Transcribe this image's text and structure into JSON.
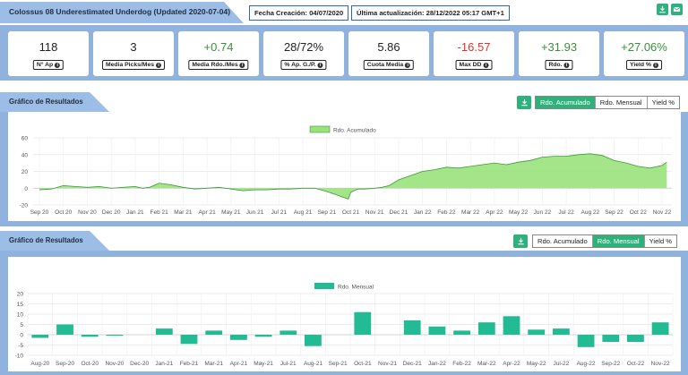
{
  "header": {
    "title": "Colossus 08 Underestimated Underdog (Updated 2020-07-04)",
    "creation_label": "Fecha Creación: 04/07/2020",
    "updated_label": "Última actualización: 28/12/2022 05:17 GMT+1",
    "icons": [
      "download-icon",
      "email-icon"
    ]
  },
  "stats": [
    {
      "value": "118",
      "label": "N° Ap",
      "tone": "neutral"
    },
    {
      "value": "3",
      "label": "Media Picks/Mes",
      "tone": "neutral"
    },
    {
      "value": "+0.74",
      "label": "Media Rdo./Mes",
      "tone": "pos"
    },
    {
      "value": "28/72%",
      "label": "% Ap. G./P.",
      "tone": "neutral"
    },
    {
      "value": "5.86",
      "label": "Cuota Media",
      "tone": "neutral"
    },
    {
      "value": "-16.57",
      "label": "Max DD",
      "tone": "neg"
    },
    {
      "value": "+31.93",
      "label": "Rdo.",
      "tone": "pos"
    },
    {
      "value": "+27.06%",
      "label": "Yield %",
      "tone": "pos"
    }
  ],
  "section1": {
    "title": "Gráfico de Resultados",
    "tabs": [
      {
        "label": "Rdo. Acumulado",
        "active": true
      },
      {
        "label": "Rdo. Mensual",
        "active": false
      },
      {
        "label": "Yield %",
        "active": false
      }
    ]
  },
  "section2": {
    "title": "Gráfico de Resultados",
    "tabs": [
      {
        "label": "Rdo. Acumulado",
        "active": false
      },
      {
        "label": "Rdo. Mensual",
        "active": true
      },
      {
        "label": "Yield %",
        "active": false
      }
    ]
  },
  "colors": {
    "accent": "#2eb27b",
    "panel": "#8fb2df",
    "area_fill": "#9be27d",
    "area_line": "#3a9a3a",
    "bar": "#22bb94",
    "negative": "#e4312b",
    "positive": "#3b8f3b"
  },
  "chart_data": [
    {
      "type": "area",
      "legend": "Rdo. Acumulado",
      "legend_position": "top-center",
      "ylim": [
        -20,
        60
      ],
      "yticks": [
        -20,
        0,
        20,
        40,
        60
      ],
      "grid": true,
      "xticks": [
        "Sep 20",
        "Oct 20",
        "Nov 20",
        "Dec 20",
        "Jan 21",
        "Feb 21",
        "Mar 21",
        "Apr 21",
        "May 21",
        "Jun 21",
        "Jul 21",
        "Aug 21",
        "Sep 21",
        "Oct 21",
        "Nov 21",
        "Dec 21",
        "Jan 22",
        "Feb 22",
        "Mar 22",
        "Apr 22",
        "May 22",
        "Jun 22",
        "Jul 22",
        "Aug 22",
        "Sep 22",
        "Oct 22",
        "Nov 22"
      ],
      "x": [
        0,
        0.5,
        1,
        1.5,
        2,
        2.5,
        3,
        3.5,
        4,
        4.3,
        4.6,
        5,
        5.5,
        6,
        6.5,
        7,
        7.5,
        8,
        8.5,
        9,
        9.5,
        10,
        10.5,
        11,
        11.5,
        12,
        12.3,
        12.6,
        12.9,
        13,
        13.3,
        13.6,
        14,
        14.3,
        14.6,
        15,
        15.3,
        15.6,
        16,
        16.5,
        17,
        17.5,
        18,
        18.5,
        19,
        19.5,
        20,
        20.5,
        21,
        21.5,
        22,
        22.5,
        23,
        23.5,
        24,
        24.5,
        25,
        25.5,
        26,
        26.2
      ],
      "y": [
        -2,
        -1,
        3,
        2,
        1,
        2,
        0,
        1,
        2,
        0,
        1,
        6,
        4,
        1,
        -1,
        0,
        1,
        -1,
        -3,
        -2,
        -2,
        -1,
        -1,
        0,
        0,
        -4,
        -7,
        -10,
        -13,
        -5,
        -1,
        -1,
        0,
        1,
        3,
        10,
        13,
        16,
        20,
        22,
        25,
        24,
        26,
        28,
        30,
        28,
        31,
        33,
        37,
        38,
        38,
        40,
        41,
        39,
        33,
        30,
        26,
        24,
        27,
        31
      ]
    },
    {
      "type": "bar",
      "legend": "Rdo. Mensual",
      "legend_position": "top-center",
      "ylim": [
        -10,
        20
      ],
      "yticks": [
        -10,
        -5,
        0,
        5,
        10,
        15,
        20
      ],
      "grid": true,
      "categories": [
        "Aug-20",
        "Sep-20",
        "Oct-20",
        "Nov-20",
        "Dec-20",
        "Jan-21",
        "Feb-21",
        "Mar-21",
        "Apr-21",
        "May-21",
        "Jul-21",
        "Aug-21",
        "Sep-21",
        "Oct-21",
        "Nov-21",
        "Dec-21",
        "Jan-22",
        "Feb-22",
        "Mar-22",
        "Apr-22",
        "May-22",
        "Jul-22",
        "Aug-22",
        "Sep-22",
        "Oct-22",
        "Nov-22"
      ],
      "values": [
        -1.5,
        5,
        -1,
        -0.5,
        0,
        3,
        -4.5,
        2,
        -2.5,
        -1,
        2,
        -5.5,
        0,
        11,
        0,
        7,
        4,
        2,
        6,
        9,
        2.5,
        3,
        -6,
        -3.5,
        -3.5,
        6
      ]
    }
  ]
}
